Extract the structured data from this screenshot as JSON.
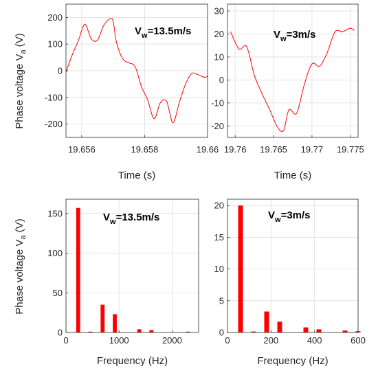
{
  "colors": {
    "series": "#ff0000",
    "axis": "#262626",
    "grid": "#dedede"
  },
  "ylabel_main": "Phase voltage V",
  "ylabel_sub": "a",
  "ylabel_unit": " (V)",
  "chart_data": [
    {
      "type": "line",
      "title": "",
      "annotation": {
        "main": "V",
        "sub": "w",
        "rest": "=13.5m/s"
      },
      "xlabel": "Time (s)",
      "ylabel": "Phase voltage Va (V)",
      "xlim": [
        19.6555,
        19.66
      ],
      "ylim": [
        -250,
        250
      ],
      "xticks": [
        19.656,
        19.658,
        19.66
      ],
      "xtick_labels": [
        "19.656",
        "19.658",
        "19.66"
      ],
      "yticks": [
        -200,
        -100,
        0,
        100,
        200
      ],
      "ytick_labels": [
        "-200",
        "-100",
        "0",
        "100",
        "200"
      ],
      "grid": true,
      "series": [
        {
          "x": [
            19.6555,
            19.6557,
            19.6559,
            19.6561,
            19.6563,
            19.6565,
            19.6567,
            19.6569,
            19.657,
            19.6571,
            19.6573,
            19.6575,
            19.6577,
            19.6579,
            19.6581,
            19.6583,
            19.6585,
            19.6587,
            19.6589,
            19.6591,
            19.6593,
            19.6595,
            19.6597,
            19.6599,
            19.66
          ],
          "y": [
            -5,
            60,
            115,
            175,
            120,
            115,
            170,
            195,
            185,
            110,
            45,
            30,
            15,
            -60,
            -110,
            -180,
            -120,
            -115,
            -195,
            -120,
            -50,
            -10,
            -15,
            -25,
            -20
          ]
        }
      ]
    },
    {
      "type": "line",
      "title": "",
      "annotation": {
        "main": "V",
        "sub": "w",
        "rest": "=3m/s"
      },
      "xlabel": "Time (s)",
      "ylabel": "",
      "xlim": [
        19.759,
        19.776
      ],
      "ylim": [
        -25,
        33
      ],
      "xticks": [
        19.76,
        19.765,
        19.77,
        19.775
      ],
      "xtick_labels": [
        "19.76",
        "19.765",
        "19.77",
        "19.775"
      ],
      "yticks": [
        -20,
        -10,
        0,
        10,
        20,
        30
      ],
      "ytick_labels": [
        "-20",
        "-10",
        "0",
        "10",
        "20",
        "30"
      ],
      "grid": true,
      "series": [
        {
          "x": [
            19.7594,
            19.7605,
            19.7615,
            19.7625,
            19.7635,
            19.7645,
            19.7655,
            19.7663,
            19.767,
            19.768,
            19.769,
            19.77,
            19.771,
            19.772,
            19.773,
            19.774,
            19.775,
            19.7755
          ],
          "y": [
            21,
            13.5,
            14.5,
            2,
            -6,
            -13,
            -20.5,
            -22,
            -13,
            -14.5,
            -2,
            7,
            6,
            12,
            21,
            21,
            22.5,
            21.5
          ]
        }
      ]
    },
    {
      "type": "bar",
      "title": "",
      "annotation": {
        "main": "V",
        "sub": "w",
        "rest": "=13.5m/s"
      },
      "xlabel": "Frequency (Hz)",
      "ylabel": "Phase voltage Va (V)",
      "xlim": [
        0,
        2500
      ],
      "ylim": [
        0,
        168
      ],
      "xticks": [
        0,
        1000,
        2000
      ],
      "xtick_labels": [
        "0",
        "1000",
        "2000"
      ],
      "yticks": [
        0,
        50,
        100,
        150
      ],
      "ytick_labels": [
        "0",
        "50",
        "100",
        "150"
      ],
      "grid": true,
      "bar_width": 75,
      "x": [
        230,
        460,
        690,
        920,
        1380,
        1610,
        2300
      ],
      "values": [
        157,
        1,
        35,
        23,
        4,
        3,
        1
      ]
    },
    {
      "type": "bar",
      "title": "",
      "annotation": {
        "main": "V",
        "sub": "w",
        "rest": "=3m/s"
      },
      "xlabel": "Frequency (Hz)",
      "ylabel": "",
      "xlim": [
        0,
        600
      ],
      "ylim": [
        0,
        21
      ],
      "xticks": [
        0,
        200,
        400,
        600
      ],
      "xtick_labels": [
        "0",
        "200",
        "400",
        "600"
      ],
      "yticks": [
        0,
        5,
        10,
        15,
        20
      ],
      "ytick_labels": [
        "0",
        "5",
        "10",
        "15",
        "20"
      ],
      "grid": true,
      "bar_width": 22,
      "x": [
        60,
        120,
        180,
        240,
        360,
        420,
        540,
        600
      ],
      "values": [
        20,
        0.15,
        3.3,
        1.7,
        0.8,
        0.5,
        0.3,
        0.2
      ]
    }
  ]
}
